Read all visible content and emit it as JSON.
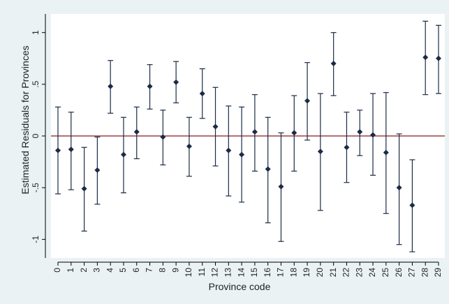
{
  "chart_data": {
    "type": "scatter",
    "title": "",
    "xlabel": "Province code",
    "ylabel": "Estimated Residuals for Provinces",
    "x_categories": [
      "0",
      "1",
      "2",
      "3",
      "4",
      "5",
      "6",
      "7",
      "8",
      "9",
      "10",
      "11",
      "12",
      "13",
      "14",
      "15",
      "16",
      "17",
      "18",
      "19",
      "20",
      "21",
      "22",
      "23",
      "24",
      "25",
      "26",
      "27",
      "28",
      "29"
    ],
    "y_ticks": [
      {
        "value": -1,
        "label": "-1"
      },
      {
        "value": -0.5,
        "label": "-.5"
      },
      {
        "value": 0,
        "label": "0"
      },
      {
        "value": 0.5,
        "label": ".5"
      },
      {
        "value": 1,
        "label": "1"
      }
    ],
    "ylim": [
      -1.18,
      1.18
    ],
    "reference_line": 0,
    "grid": false,
    "legend": "none",
    "colors": {
      "background": "#eaf2f3",
      "plot_area": "#ffffff",
      "marker": "#1a2b45",
      "reference_line": "#8b1a1a",
      "axis": "#000000"
    },
    "estimates": [
      -0.14,
      -0.13,
      -0.51,
      -0.33,
      0.48,
      -0.18,
      0.04,
      0.48,
      -0.01,
      0.52,
      -0.1,
      0.41,
      0.09,
      -0.14,
      -0.18,
      0.04,
      -0.32,
      -0.49,
      0.03,
      0.34,
      -0.15,
      0.7,
      -0.11,
      0.04,
      0.01,
      -0.16,
      -0.5,
      -0.67,
      0.76,
      0.75
    ],
    "ci_lower": [
      -0.56,
      -0.52,
      -0.92,
      -0.66,
      0.22,
      -0.55,
      -0.22,
      0.26,
      -0.28,
      0.32,
      -0.39,
      0.17,
      -0.29,
      -0.58,
      -0.64,
      -0.34,
      -0.84,
      -1.02,
      -0.34,
      -0.04,
      -0.72,
      0.39,
      -0.45,
      -0.19,
      -0.38,
      -0.75,
      -1.05,
      -1.12,
      0.4,
      0.41
    ],
    "ci_upper": [
      0.28,
      0.23,
      -0.11,
      -0.01,
      0.73,
      0.18,
      0.28,
      0.69,
      0.25,
      0.72,
      0.18,
      0.65,
      0.47,
      0.29,
      0.28,
      0.4,
      0.18,
      0.03,
      0.39,
      0.71,
      0.41,
      1.0,
      0.23,
      0.25,
      0.41,
      0.42,
      0.02,
      -0.23,
      1.11,
      1.07
    ]
  }
}
